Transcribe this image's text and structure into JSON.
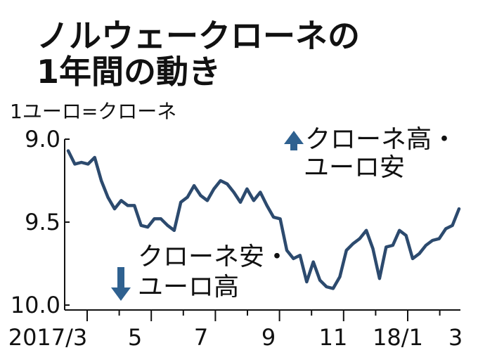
{
  "chart_data": {
    "type": "line",
    "title": "ノルウェークローネの\n1年間の動き",
    "ylabel": "1ユーロ=クローネ",
    "y_axis_inverted": true,
    "ylim": [
      9.0,
      10.0
    ],
    "y_ticks": [
      "9.0",
      "9.5",
      "10.0"
    ],
    "x_ticks": [
      "2017/3",
      "5",
      "7",
      "9",
      "11",
      "18/1",
      "3"
    ],
    "grid": false,
    "line_color": "#2c4a6e",
    "arrow_color": "#2f6190",
    "annotations": {
      "up": {
        "line1": "クローネ高・",
        "line2": "ユーロ安"
      },
      "down": {
        "line1": "クローネ安・",
        "line2": "ユーロ高"
      }
    },
    "x": [
      0,
      1,
      2,
      3,
      4,
      5,
      6,
      7,
      8,
      9,
      10,
      11,
      12,
      13,
      14,
      15,
      16,
      17,
      18,
      19,
      20,
      21,
      22,
      23,
      24,
      25,
      26,
      27,
      28,
      29,
      30,
      31,
      32,
      33,
      34,
      35,
      36,
      37,
      38,
      39,
      40,
      41,
      42,
      43,
      44,
      45,
      46,
      47,
      48,
      49,
      50,
      51,
      52,
      53,
      54,
      55,
      56,
      57,
      58,
      59
    ],
    "values": [
      9.07,
      9.15,
      9.14,
      9.15,
      9.11,
      9.25,
      9.35,
      9.42,
      9.37,
      9.4,
      9.4,
      9.52,
      9.53,
      9.48,
      9.48,
      9.52,
      9.55,
      9.38,
      9.35,
      9.28,
      9.34,
      9.37,
      9.3,
      9.25,
      9.27,
      9.32,
      9.38,
      9.3,
      9.37,
      9.32,
      9.4,
      9.47,
      9.48,
      9.67,
      9.72,
      9.7,
      9.86,
      9.74,
      9.85,
      9.89,
      9.9,
      9.83,
      9.67,
      9.63,
      9.6,
      9.55,
      9.66,
      9.84,
      9.65,
      9.64,
      9.55,
      9.58,
      9.72,
      9.69,
      9.64,
      9.61,
      9.6,
      9.54,
      9.52,
      9.42
    ]
  }
}
